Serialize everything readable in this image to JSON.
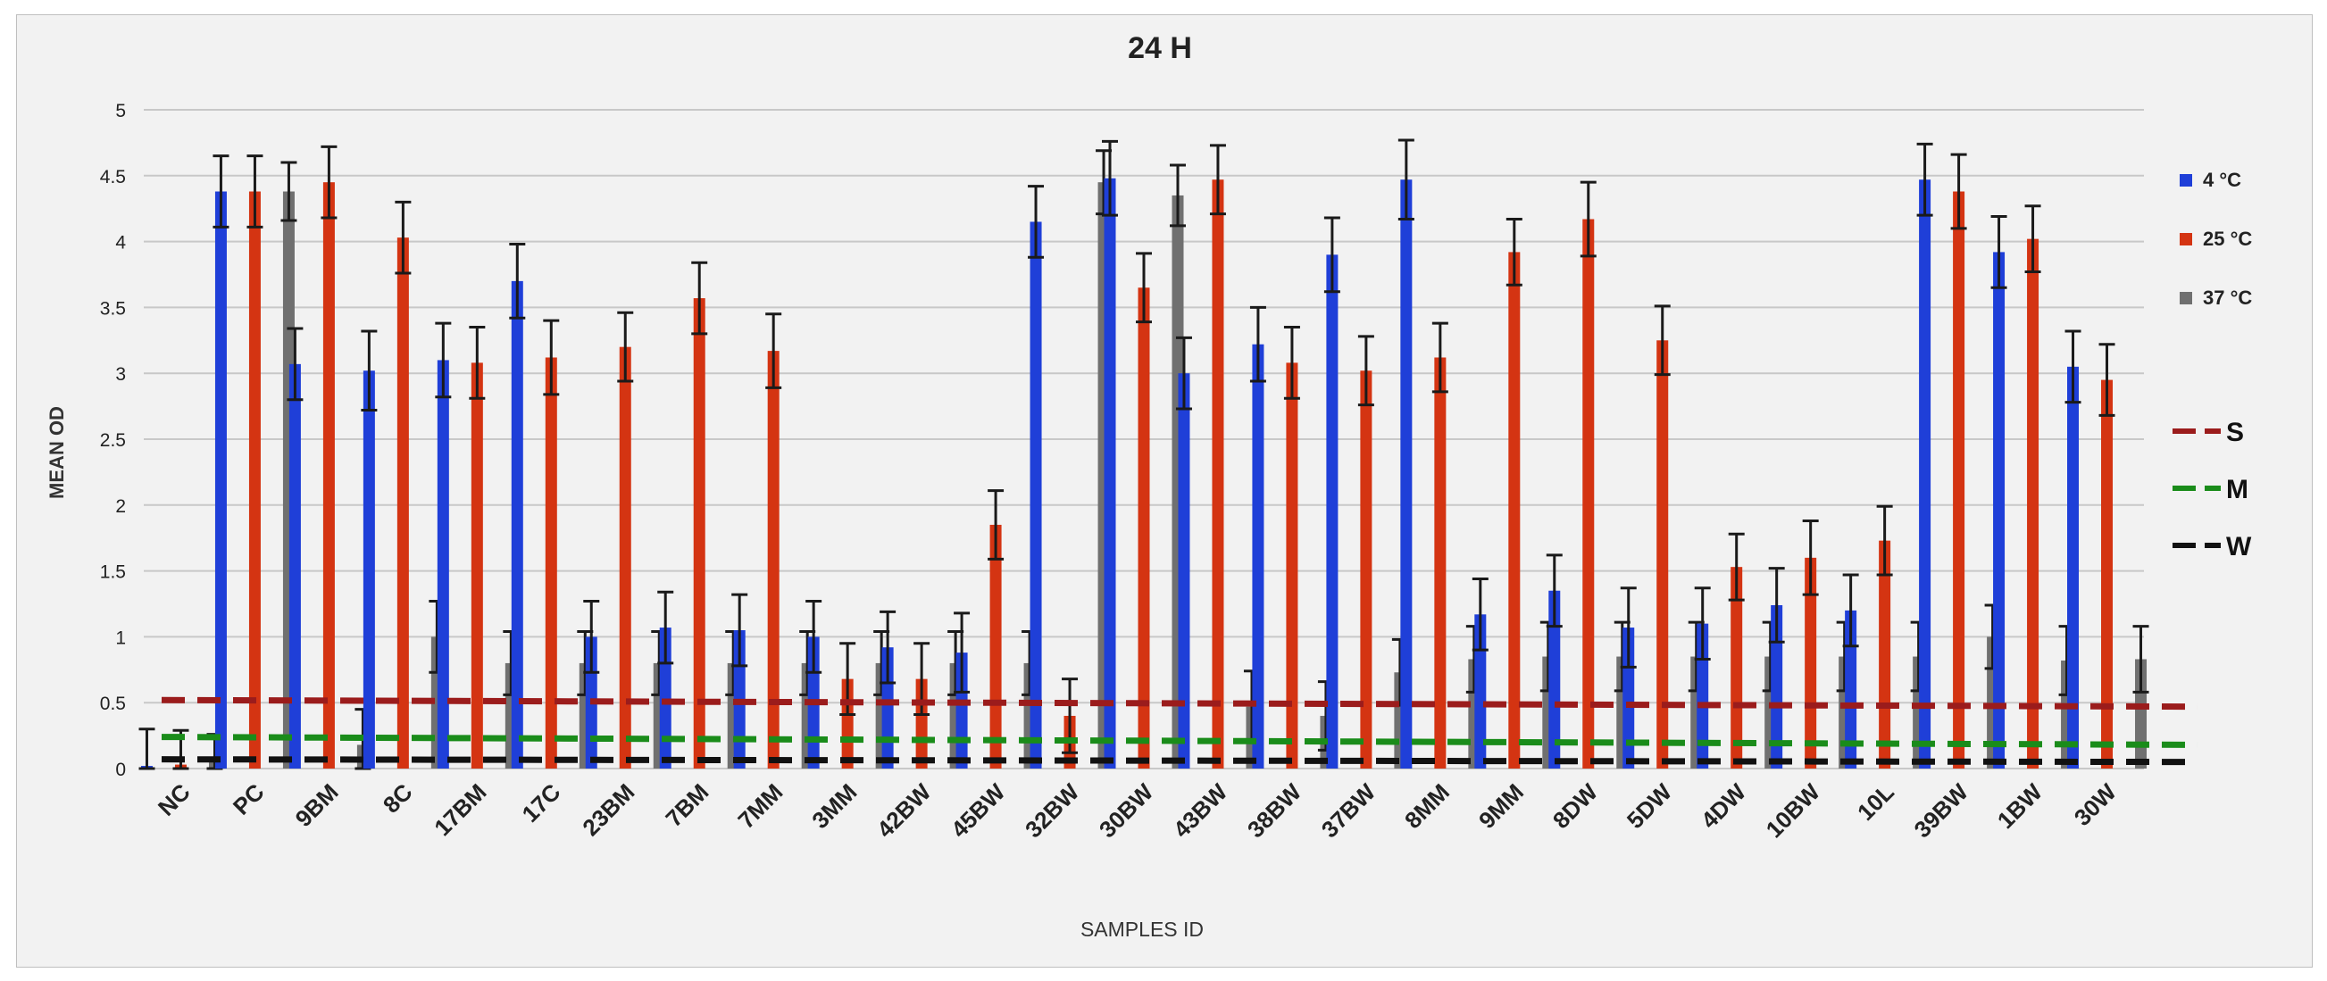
{
  "chart_data": {
    "type": "bar",
    "title": "24 H",
    "xlabel": "SAMPLES ID",
    "ylabel": "MEAN OD",
    "ylim": [
      0,
      5
    ],
    "yticks": [
      "0",
      "0.5",
      "1",
      "1.5",
      "2",
      "2.5",
      "3",
      "3.5",
      "4",
      "4.5",
      "5"
    ],
    "grid": true,
    "legend_position": "right",
    "categories": [
      "NC",
      "PC",
      "9BM",
      "8C",
      "17BM",
      "17C",
      "23BM",
      "7BM",
      "7MM",
      "3MM",
      "42BW",
      "45BW",
      "32BW",
      "30BW",
      "43BW",
      "38BW",
      "37BW",
      "8MM",
      "9MM",
      "8DW",
      "5DW",
      "4DW",
      "10BW",
      "10L",
      "39BW",
      "1BW",
      "30W"
    ],
    "series": [
      {
        "name": "4 °C",
        "color": "#1f3fd8",
        "values": [
          0.02,
          4.38,
          3.07,
          3.02,
          3.1,
          3.7,
          1.0,
          1.07,
          1.05,
          1.0,
          0.92,
          0.88,
          4.15,
          4.48,
          3.0,
          3.22,
          3.9,
          4.47,
          1.17,
          1.35,
          1.07,
          1.1,
          1.24,
          1.2,
          4.47,
          3.92,
          3.05
        ],
        "errors": [
          0.28,
          0.27,
          0.27,
          0.3,
          0.28,
          0.28,
          0.27,
          0.27,
          0.27,
          0.27,
          0.27,
          0.3,
          0.27,
          0.28,
          0.27,
          0.28,
          0.28,
          0.3,
          0.27,
          0.27,
          0.3,
          0.27,
          0.28,
          0.27,
          0.27,
          0.27,
          0.27
        ]
      },
      {
        "name": "25 °C",
        "color": "#d43412",
        "values": [
          0.03,
          4.38,
          4.45,
          4.03,
          3.08,
          3.12,
          3.2,
          3.57,
          3.17,
          0.68,
          0.68,
          1.85,
          0.4,
          3.65,
          4.47,
          3.08,
          3.02,
          3.12,
          3.92,
          4.17,
          3.25,
          1.53,
          1.6,
          1.73,
          4.38,
          4.02,
          2.95
        ],
        "errors": [
          0.26,
          0.27,
          0.27,
          0.27,
          0.27,
          0.28,
          0.26,
          0.27,
          0.28,
          0.27,
          0.27,
          0.26,
          0.28,
          0.26,
          0.26,
          0.27,
          0.26,
          0.26,
          0.25,
          0.28,
          0.26,
          0.25,
          0.28,
          0.26,
          0.28,
          0.25,
          0.27
        ]
      },
      {
        "name": "37 °C",
        "color": "#707070",
        "values": [
          0.08,
          4.38,
          0.18,
          1.0,
          0.8,
          0.8,
          0.8,
          0.8,
          0.8,
          0.8,
          0.8,
          0.8,
          4.45,
          4.35,
          0.47,
          0.4,
          0.73,
          0.83,
          0.85,
          0.85,
          0.85,
          0.85,
          0.85,
          0.85,
          1.0,
          0.82,
          0.83
        ],
        "errors": [
          0.18,
          0.22,
          0.27,
          0.27,
          0.24,
          0.24,
          0.24,
          0.24,
          0.24,
          0.24,
          0.24,
          0.24,
          0.24,
          0.23,
          0.27,
          0.26,
          0.25,
          0.25,
          0.26,
          0.26,
          0.26,
          0.26,
          0.26,
          0.26,
          0.24,
          0.26,
          0.25
        ]
      }
    ],
    "thresholds": [
      {
        "name": "S",
        "color": "#9b1c1c",
        "start": 0.52,
        "end": 0.47
      },
      {
        "name": "M",
        "color": "#1a8c1a",
        "start": 0.24,
        "end": 0.18
      },
      {
        "name": "W",
        "color": "#111111",
        "start": 0.07,
        "end": 0.05
      }
    ]
  }
}
